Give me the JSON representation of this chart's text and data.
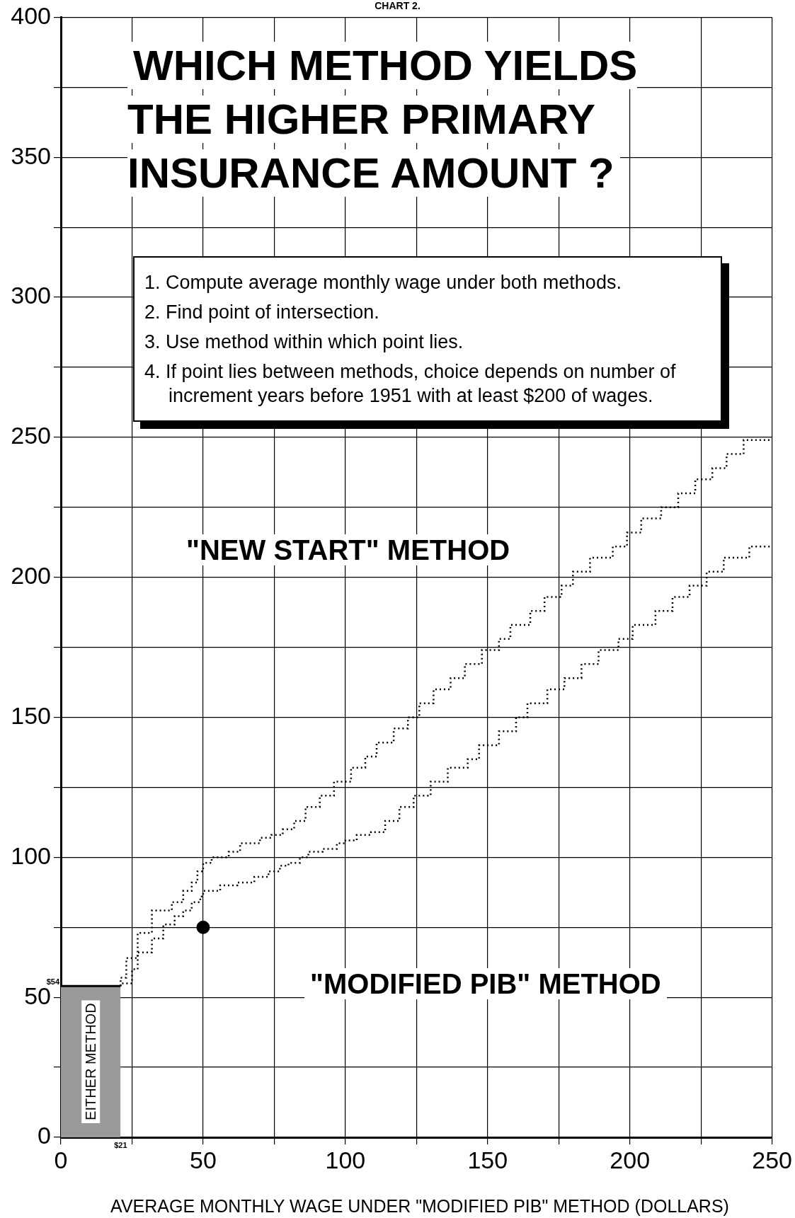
{
  "chart_data": {
    "type": "step",
    "title": "WHICH METHOD YIELDS THE HIGHER PRIMARY INSURANCE AMOUNT ?",
    "xlabel": "AVERAGE MONTHLY WAGE UNDER \"MODIFIED PIB\" METHOD (DOLLARS)",
    "annotations": [
      "CHART 2.",
      "1. Compute average monthly wage under both methods.",
      "2. Find point of intersection.",
      "3. Use method within which point lies.",
      "4. If point lies between methods, choice depends on number of increment years before 1951 with at least $200 of wages.",
      "\"NEW START\" METHOD",
      "\"MODIFIED PIB\" METHOD",
      {
        "text": "$54",
        "x": 0,
        "y": 54
      },
      {
        "text": "$21",
        "x": 21,
        "y": 0
      }
    ],
    "series": [
      {
        "type": "step",
        "color": "#000000",
        "line_style": "dotted",
        "x": [
          21,
          23,
          27,
          32,
          39,
          43,
          46,
          48,
          50,
          53,
          59,
          63,
          70,
          74,
          78,
          82,
          86,
          91,
          96,
          102,
          107,
          111,
          117,
          122,
          126,
          131,
          137,
          142,
          148,
          154,
          158,
          165,
          170,
          176,
          180,
          186,
          194,
          199,
          204,
          211,
          217,
          223,
          229,
          234,
          240,
          244,
          250
        ],
        "values": [
          54,
          57,
          64,
          73,
          81,
          84,
          88,
          91,
          95,
          98,
          100,
          102,
          105,
          107,
          108,
          110,
          113,
          118,
          122,
          127,
          132,
          136,
          141,
          146,
          150,
          155,
          160,
          164,
          169,
          174,
          178,
          183,
          188,
          193,
          197,
          202,
          207,
          211,
          216,
          221,
          225,
          230,
          235,
          239,
          244,
          249,
          249
        ]
      },
      {
        "type": "step",
        "color": "#000000",
        "line_style": "dotted",
        "x": [
          21,
          25,
          27,
          32,
          36,
          40,
          43,
          46,
          49,
          50,
          56,
          62,
          68,
          73,
          77,
          80,
          84,
          87,
          92,
          97,
          100,
          104,
          109,
          114,
          119,
          124,
          130,
          136,
          143,
          147,
          154,
          160,
          164,
          171,
          177,
          183,
          189,
          196,
          201,
          209,
          215,
          221,
          227,
          233,
          242,
          247,
          250
        ],
        "values": [
          54,
          55,
          60,
          66,
          71,
          76,
          79,
          81,
          84,
          86,
          88,
          90,
          91,
          93,
          95,
          97,
          98,
          100,
          102,
          103,
          105,
          106,
          108,
          109,
          113,
          118,
          122,
          127,
          132,
          135,
          140,
          145,
          150,
          155,
          160,
          164,
          169,
          174,
          178,
          183,
          188,
          193,
          197,
          202,
          207,
          211,
          211
        ]
      },
      {
        "type": "area",
        "name": "EITHER METHOD",
        "color": "#9a9a9a",
        "x": [
          0,
          21
        ],
        "values": [
          54,
          54
        ]
      },
      {
        "type": "scatter",
        "color": "#000000",
        "marker": "circle",
        "x": [
          50
        ],
        "values": [
          75
        ]
      }
    ],
    "xlim": [
      0,
      250
    ],
    "ylim": [
      0,
      400
    ],
    "xticks": [
      0,
      {
        "value": 25,
        "label": null
      },
      50,
      {
        "value": 75,
        "label": null
      },
      100,
      {
        "value": 125,
        "label": null
      },
      150,
      {
        "value": 175,
        "label": null
      },
      200,
      {
        "value": 225,
        "label": null
      },
      250
    ],
    "yticks": [
      0,
      {
        "value": 25,
        "label": null
      },
      50,
      {
        "value": 75,
        "label": null
      },
      100,
      {
        "value": 125,
        "label": null
      },
      150,
      {
        "value": 175,
        "label": null
      },
      200,
      {
        "value": 225,
        "label": null
      },
      250,
      {
        "value": 275,
        "label": null
      },
      300,
      {
        "value": 325,
        "label": null
      },
      350,
      {
        "value": 375,
        "label": null
      },
      400
    ],
    "grid": true,
    "legend": false
  }
}
